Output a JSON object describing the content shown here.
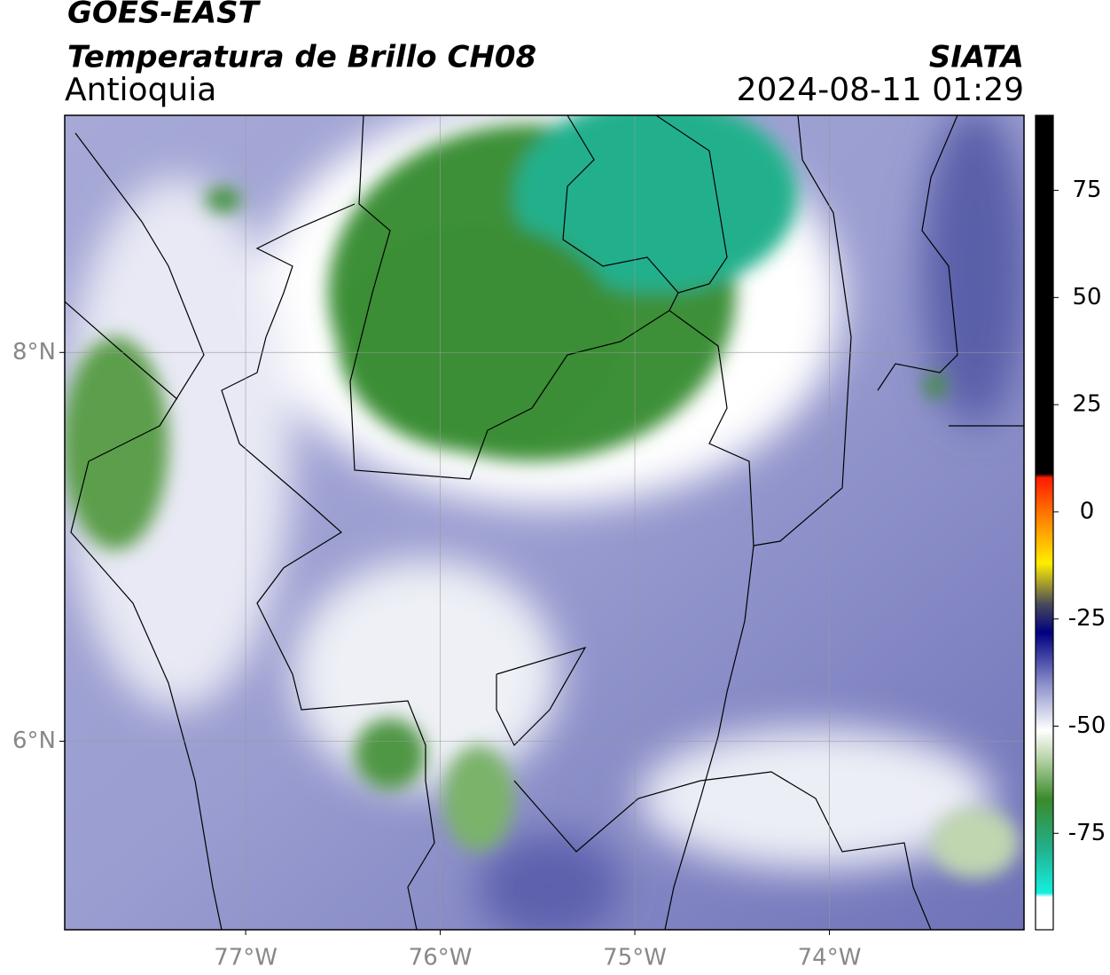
{
  "header": {
    "title": "GOES-EAST",
    "subtitle": "Temperatura de Brillo CH08",
    "region": "Antioquia",
    "source": "SIATA",
    "datetime": "2024-08-11 01:29"
  },
  "map": {
    "xlim": [
      -77.93,
      -73.0
    ],
    "ylim": [
      5.03,
      9.22
    ],
    "xticks": [
      {
        "value": -77,
        "label": "77°W"
      },
      {
        "value": -76,
        "label": "76°W"
      },
      {
        "value": -75,
        "label": "75°W"
      },
      {
        "value": -74,
        "label": "74°W"
      }
    ],
    "yticks": [
      {
        "value": 6,
        "label": "6°N"
      },
      {
        "value": 8,
        "label": "8°N"
      }
    ],
    "grid": true
  },
  "colorbar": {
    "lim": [
      -97.5,
      92.5
    ],
    "ticks": [
      -75,
      -50,
      -25,
      0,
      25,
      50,
      75
    ]
  }
}
